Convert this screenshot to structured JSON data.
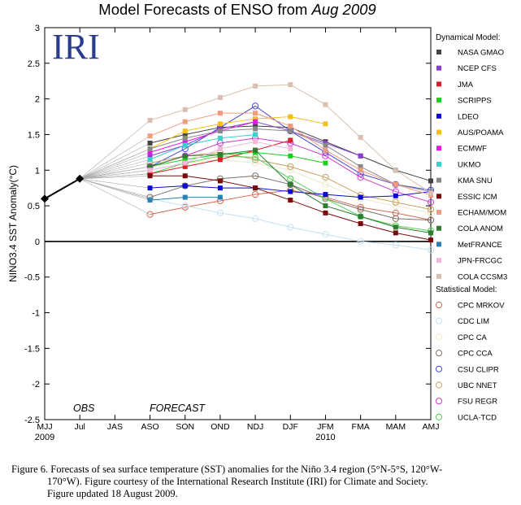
{
  "chart_data": {
    "type": "line",
    "title_prefix": "Model Forecasts of ENSO from ",
    "title_italic": "Aug 2009",
    "ylabel": "NINO3.4 SST Anomaly(°C)",
    "ylim": [
      -2.5,
      3
    ],
    "yticks": [
      -2.5,
      -2,
      -1.5,
      -1,
      -0.5,
      0,
      0.5,
      1,
      1.5,
      2,
      2.5,
      3
    ],
    "categories": [
      "MJJ",
      "Jul",
      "JAS",
      "ASO",
      "SON",
      "OND",
      "NDJ",
      "DJF",
      "JFM",
      "FMA",
      "MAM",
      "AMJ"
    ],
    "year_labels": [
      {
        "at": "MJJ",
        "text": "2009"
      },
      {
        "at": "JFM",
        "text": "2010"
      }
    ],
    "logo": "IRI",
    "obs_label": "OBS",
    "forecast_label": "FORECAST",
    "observed": {
      "x": [
        "MJJ",
        "Jul"
      ],
      "values": [
        0.6,
        0.88
      ]
    },
    "forecast_start": {
      "x": "Jul",
      "value": 0.88
    },
    "dynamical_header": "Dynamical Model:",
    "statistical_header": "Statistical Model:",
    "dynamical": [
      {
        "name": "NASA GMAO",
        "color": "#444444",
        "values": [
          1.38,
          1.5,
          1.6,
          1.62,
          1.6,
          1.4,
          1.2,
          1.0,
          0.85
        ]
      },
      {
        "name": "NCEP CFS",
        "color": "#8a3fcf",
        "values": [
          1.2,
          1.35,
          1.58,
          1.68,
          1.55,
          1.38,
          1.2,
          null,
          null
        ]
      },
      {
        "name": "JMA",
        "color": "#d81f2a",
        "values": [
          0.95,
          1.05,
          1.15,
          1.28,
          1.42,
          null,
          null,
          null,
          null
        ]
      },
      {
        "name": "SCRIPPS",
        "color": "#1fcf1f",
        "values": [
          1.05,
          1.15,
          1.22,
          1.25,
          1.2,
          1.1,
          null,
          null,
          null
        ]
      },
      {
        "name": "LDEO",
        "color": "#0a0ad0",
        "values": [
          0.75,
          0.78,
          0.75,
          0.75,
          0.7,
          0.66,
          0.62,
          0.64,
          0.7
        ]
      },
      {
        "name": "AUS/POAMA",
        "color": "#f5bf1b",
        "values": [
          1.3,
          1.55,
          1.65,
          1.72,
          1.75,
          1.65,
          null,
          null,
          null
        ]
      },
      {
        "name": "ECMWF",
        "color": "#e61ae6",
        "values": [
          1.25,
          1.4,
          1.55,
          1.68,
          null,
          null,
          null,
          null,
          null
        ]
      },
      {
        "name": "UKMO",
        "color": "#3ad0d0",
        "values": [
          1.15,
          1.35,
          1.45,
          1.5,
          null,
          null,
          null,
          null,
          null
        ]
      },
      {
        "name": "KMA SNU",
        "color": "#888888",
        "values": [
          1.3,
          1.45,
          1.55,
          1.58,
          1.55,
          1.35,
          1.05,
          0.8,
          0.7
        ]
      },
      {
        "name": "ESSIC ICM",
        "color": "#7a0a0a",
        "values": [
          0.92,
          0.92,
          0.85,
          0.75,
          0.58,
          0.4,
          0.25,
          0.12,
          0.02
        ]
      },
      {
        "name": "ECHAM/MOM",
        "color": "#f29a80",
        "values": [
          1.48,
          1.68,
          1.8,
          1.8,
          1.62,
          1.28,
          1.0,
          0.8,
          0.65
        ]
      },
      {
        "name": "COLA ANOM",
        "color": "#2e7d32",
        "values": [
          1.05,
          1.2,
          1.22,
          1.28,
          0.8,
          0.5,
          0.35,
          0.2,
          0.12
        ]
      },
      {
        "name": "MetFRANCE",
        "color": "#2a80b4",
        "values": [
          0.58,
          0.62,
          0.62,
          null,
          null,
          null,
          null,
          null,
          null
        ]
      },
      {
        "name": "JPN-FRCGC",
        "color": "#f5b7d8",
        "values": [
          1.0,
          1.1,
          1.3,
          1.4,
          1.3,
          null,
          null,
          null,
          null
        ]
      },
      {
        "name": "COLA CCSM3",
        "color": "#d8bfb0",
        "values": [
          1.7,
          1.85,
          2.02,
          2.18,
          2.2,
          1.92,
          1.46,
          1.0,
          0.68
        ]
      }
    ],
    "statistical": [
      {
        "name": "CPC MRKOV",
        "color": "#d26a52",
        "values": [
          0.38,
          0.48,
          0.57,
          0.66,
          0.72,
          0.62,
          0.48,
          0.4,
          0.3
        ]
      },
      {
        "name": "CDC LIM",
        "color": "#c6e2f2",
        "values": [
          0.6,
          0.5,
          0.4,
          0.32,
          0.2,
          0.1,
          0.0,
          -0.05,
          -0.12
        ]
      },
      {
        "name": "CPC CA",
        "color": "#eee8c8",
        "values": [
          1.0,
          1.1,
          1.15,
          1.1,
          1.0,
          0.8,
          0.6,
          0.5,
          0.4
        ]
      },
      {
        "name": "CPC CCA",
        "color": "#7f7066",
        "values": [
          0.62,
          0.78,
          0.88,
          0.92,
          0.8,
          0.6,
          0.45,
          0.32,
          0.3
        ]
      },
      {
        "name": "CSU CLIPR",
        "color": "#4a4ad2",
        "values": [
          1.05,
          1.3,
          1.6,
          1.9,
          1.55,
          1.25,
          0.95,
          0.8,
          0.72
        ]
      },
      {
        "name": "UBC NNET",
        "color": "#c8a060",
        "values": [
          1.1,
          1.2,
          1.25,
          1.15,
          1.05,
          0.9,
          0.65,
          0.55,
          0.45
        ]
      },
      {
        "name": "FSU REGR",
        "color": "#cf3acf",
        "values": [
          1.05,
          1.2,
          1.38,
          1.45,
          1.38,
          1.2,
          0.9,
          0.7,
          0.55
        ]
      },
      {
        "name": "UCLA-TCD",
        "color": "#58d058",
        "values": [
          0.95,
          1.1,
          1.2,
          1.18,
          0.88,
          0.6,
          0.35,
          0.22,
          0.15
        ]
      }
    ]
  },
  "caption": {
    "line1": "Figure 6. Forecasts of sea surface temperature (SST) anomalies for the Niño 3.4 region (5°N-5°S, 120°W-",
    "line2": "170°W).  Figure courtesy of the International Research Institute (IRI) for Climate and Society.",
    "line3": "Figure updated 18 August 2009."
  }
}
